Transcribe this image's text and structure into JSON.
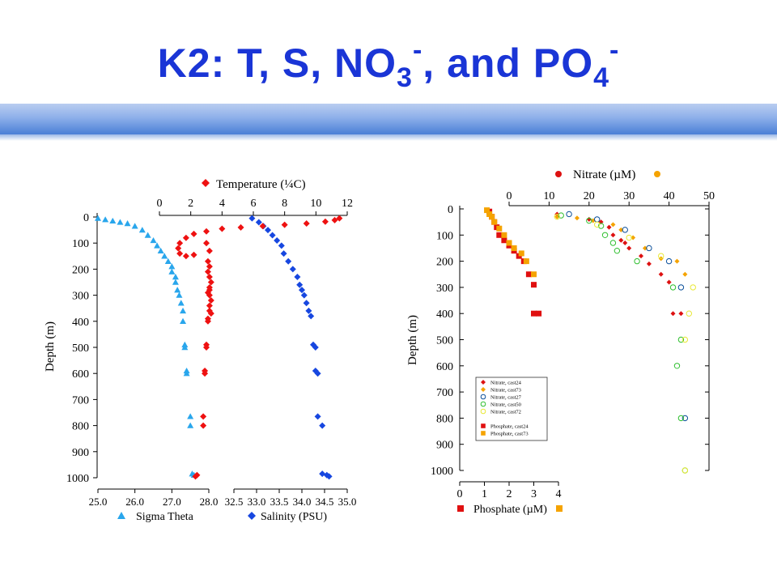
{
  "slide": {
    "title_main": "K2: T, S, NO",
    "title_sub1": "3",
    "title_sup1": "-",
    "title_mid": ", and PO",
    "title_sub2": "4",
    "title_sup2": "-"
  },
  "colors": {
    "title": "#1a35d6",
    "temperature": "#ee1111",
    "sigma_theta": "#29a6ec",
    "salinity": "#1747e0",
    "nitrate_red": "#dd1111",
    "nitrate_orange": "#f5a300",
    "nitrate_blue": "#0b4f9a",
    "nitrate_green": "#2fbf2f",
    "nitrate_yellow": "#e8e835",
    "phosphate_red": "#e01010",
    "phosphate_orange": "#f5a300"
  },
  "chart_data": [
    {
      "type": "scatter",
      "ylabel": "Depth (m)",
      "y_ticks": [
        "0",
        "100",
        "200",
        "300",
        "400",
        "500",
        "600",
        "700",
        "800",
        "900",
        "1000"
      ],
      "ylim": [
        1000,
        0
      ],
      "top_axis": {
        "label": "Temperature (¼C)",
        "ticks": [
          "0",
          "2",
          "4",
          "6",
          "8",
          "10",
          "12"
        ],
        "range": [
          0,
          12
        ]
      },
      "bottom_axis_left": {
        "label": "Sigma Theta",
        "ticks": [
          "25.0",
          "26.0",
          "27.0",
          "28.0"
        ],
        "range": [
          25.0,
          28.0
        ]
      },
      "bottom_axis_right": {
        "label": "Salinity (PSU)",
        "ticks": [
          "32.5",
          "33.0",
          "33.5",
          "34.0",
          "34.5",
          "35.0"
        ],
        "range": [
          32.5,
          35.0
        ]
      },
      "series": [
        {
          "name": "Temperature (¼C)",
          "marker": "diamond",
          "x": [
            11.5,
            11.2,
            10.6,
            9.4,
            8.0,
            6.6,
            5.2,
            4.0,
            3.0,
            2.2,
            1.7,
            1.3,
            1.2,
            1.3,
            1.7,
            2.2,
            3.0,
            3.2,
            3.1,
            3.2,
            3.1,
            3.2,
            3.3,
            3.2,
            3.2,
            3.1,
            3.2,
            3.3,
            3.2,
            3.2,
            3.3,
            3.1,
            3.1,
            3.0,
            3.0,
            2.9,
            2.9,
            2.8,
            2.8,
            2.4,
            2.3
          ],
          "y": [
            5,
            12,
            18,
            25,
            30,
            35,
            40,
            45,
            55,
            65,
            80,
            100,
            120,
            140,
            150,
            145,
            100,
            130,
            170,
            190,
            210,
            230,
            250,
            270,
            280,
            290,
            300,
            320,
            340,
            360,
            370,
            390,
            400,
            490,
            500,
            590,
            600,
            765,
            800,
            990,
            995
          ]
        },
        {
          "name": "Sigma Theta",
          "marker": "triangle",
          "x": [
            25.0,
            25.2,
            25.4,
            25.6,
            25.8,
            26.0,
            26.2,
            26.35,
            26.5,
            26.6,
            26.7,
            26.8,
            26.9,
            27.0,
            27.0,
            27.1,
            27.1,
            27.15,
            27.2,
            27.25,
            27.3,
            27.3,
            27.35,
            27.35,
            27.4,
            27.4,
            27.5,
            27.5,
            27.55,
            27.6
          ],
          "y": [
            5,
            10,
            15,
            20,
            25,
            35,
            50,
            70,
            90,
            110,
            130,
            150,
            170,
            190,
            210,
            230,
            250,
            280,
            300,
            330,
            360,
            400,
            490,
            500,
            590,
            600,
            765,
            800,
            985,
            990
          ]
        },
        {
          "name": "Salinity (PSU)",
          "marker": "diamond",
          "x": [
            32.9,
            33.05,
            33.15,
            33.25,
            33.35,
            33.45,
            33.55,
            33.6,
            33.7,
            33.8,
            33.9,
            33.95,
            34.0,
            34.05,
            34.1,
            34.15,
            34.2,
            34.25,
            34.3,
            34.3,
            34.35,
            34.35,
            34.45,
            34.45,
            34.55,
            34.6
          ],
          "y": [
            5,
            20,
            35,
            50,
            70,
            90,
            110,
            140,
            170,
            200,
            230,
            260,
            280,
            300,
            330,
            360,
            380,
            490,
            500,
            590,
            600,
            765,
            800,
            985,
            990,
            995
          ]
        }
      ]
    },
    {
      "type": "scatter",
      "ylabel": "Depth (m)",
      "y_ticks": [
        "0",
        "100",
        "200",
        "300",
        "400",
        "500",
        "600",
        "700",
        "800",
        "900",
        "1000"
      ],
      "ylim": [
        1000,
        0
      ],
      "top_axis": {
        "label": "Nitrate (µM)",
        "ticks": [
          "0",
          "10",
          "20",
          "30",
          "40",
          "50"
        ],
        "range": [
          0,
          50
        ]
      },
      "bottom_axis": {
        "label": "Phosphate (µM)",
        "ticks": [
          "0",
          "1",
          "2",
          "3",
          "4"
        ],
        "range": [
          0,
          4
        ]
      },
      "legend": {
        "placement": "lower-left inside",
        "entries": [
          "Nitrate, cast24",
          "Nitrate, cast73",
          "Nitrate, cast27",
          "Nitrate, cast50",
          "Nitrate, cast72",
          "Phosphate, cast24",
          "Phosphate, cast73"
        ]
      },
      "series": [
        {
          "name": "Nitrate, cast24",
          "axis": "top",
          "marker": "filled-diamond",
          "x": [
            12,
            20,
            23,
            25,
            26,
            28,
            29,
            30,
            33,
            35,
            38,
            40,
            41,
            43
          ],
          "y": [
            20,
            40,
            50,
            70,
            100,
            120,
            130,
            150,
            180,
            210,
            250,
            280,
            400,
            400
          ]
        },
        {
          "name": "Nitrate, cast73",
          "axis": "top",
          "marker": "filled-diamond",
          "x": [
            12,
            17,
            21,
            26,
            28,
            31,
            34,
            38,
            42,
            44
          ],
          "y": [
            30,
            35,
            45,
            60,
            80,
            110,
            150,
            190,
            200,
            250
          ]
        },
        {
          "name": "Nitrate, cast27",
          "axis": "top",
          "marker": "open-circle",
          "x": [
            15,
            22,
            29,
            35,
            40,
            43,
            44
          ],
          "y": [
            20,
            40,
            80,
            150,
            200,
            300,
            800
          ]
        },
        {
          "name": "Nitrate, cast50",
          "axis": "top",
          "marker": "open-circle",
          "x": [
            13,
            20,
            23,
            24,
            26,
            27,
            32,
            41,
            43,
            42,
            43,
            44
          ],
          "y": [
            25,
            45,
            65,
            100,
            130,
            160,
            200,
            300,
            500,
            600,
            800,
            1000
          ]
        },
        {
          "name": "Nitrate, cast72",
          "axis": "top",
          "marker": "open-circle",
          "x": [
            12,
            22,
            30,
            38,
            46,
            45,
            44,
            44
          ],
          "y": [
            30,
            60,
            110,
            180,
            300,
            400,
            500,
            1000
          ]
        },
        {
          "name": "Phosphate, cast24",
          "axis": "bottom",
          "marker": "filled-square",
          "x": [
            1.2,
            1.3,
            1.4,
            1.5,
            1.6,
            1.8,
            2.0,
            2.2,
            2.4,
            2.6,
            2.8,
            3.0,
            3.0,
            3.2
          ],
          "y": [
            10,
            30,
            50,
            70,
            100,
            120,
            140,
            160,
            180,
            200,
            250,
            290,
            400,
            400
          ]
        },
        {
          "name": "Phosphate, cast73",
          "axis": "bottom",
          "marker": "filled-square",
          "x": [
            1.1,
            1.2,
            1.3,
            1.4,
            1.6,
            1.8,
            2.0,
            2.2,
            2.5,
            2.7,
            3.0
          ],
          "y": [
            5,
            20,
            30,
            50,
            75,
            100,
            130,
            150,
            170,
            200,
            250
          ]
        }
      ]
    }
  ]
}
